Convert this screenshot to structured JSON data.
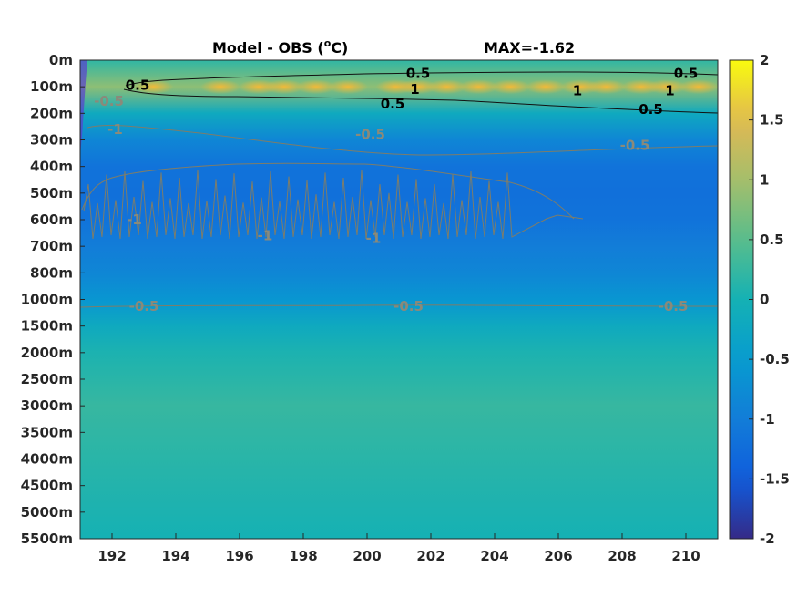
{
  "chart_data": {
    "type": "heatmap",
    "title": "Model - OBS (°C)",
    "title_base": "Model - OBS (",
    "title_sup": "o",
    "title_unit": "C)",
    "max_label": "MAX=-1.62",
    "x": {
      "range": [
        191,
        211
      ],
      "ticks": [
        192,
        194,
        196,
        198,
        200,
        202,
        204,
        206,
        208,
        210
      ]
    },
    "y": {
      "reversed": true,
      "ticks": [
        "0m",
        "100m",
        "200m",
        "300m",
        "400m",
        "500m",
        "600m",
        "700m",
        "800m",
        "1000m",
        "1500m",
        "2000m",
        "2500m",
        "3000m",
        "3500m",
        "4000m",
        "4500m",
        "5000m",
        "5500m"
      ]
    },
    "colorbar": {
      "range": [
        -2,
        2
      ],
      "ticks": [
        "2",
        "1.5",
        "1",
        "0.5",
        "0",
        "-0.5",
        "-1",
        "-1.5",
        "-2"
      ],
      "colormap": "parula"
    },
    "depth_profile": [
      {
        "depth": "0m",
        "value": 0.2
      },
      {
        "depth": "100m",
        "value": 0.85
      },
      {
        "depth": "200m",
        "value": -0.2
      },
      {
        "depth": "300m",
        "value": -0.85
      },
      {
        "depth": "400m",
        "value": -1.15
      },
      {
        "depth": "500m",
        "value": -1.2
      },
      {
        "depth": "600m",
        "value": -1.15
      },
      {
        "depth": "700m",
        "value": -1.0
      },
      {
        "depth": "800m",
        "value": -0.85
      },
      {
        "depth": "1000m",
        "value": -0.6
      },
      {
        "depth": "1500m",
        "value": -0.2
      },
      {
        "depth": "2000m",
        "value": 0.05
      },
      {
        "depth": "2500m",
        "value": 0.15
      },
      {
        "depth": "3000m",
        "value": 0.25
      },
      {
        "depth": "3500m",
        "value": 0.2
      },
      {
        "depth": "4000m",
        "value": 0.15
      },
      {
        "depth": "4500m",
        "value": 0.1
      },
      {
        "depth": "5000m",
        "value": 0.05
      },
      {
        "depth": "5500m",
        "value": 0.0
      }
    ],
    "contour_labels": [
      {
        "text": "0.5",
        "x": 192.8,
        "depth_index": 0.95,
        "style": "dark"
      },
      {
        "text": "0.5",
        "x": 201.6,
        "depth_index": 0.5,
        "style": "dark"
      },
      {
        "text": "0.5",
        "x": 210.0,
        "depth_index": 0.5,
        "style": "dark"
      },
      {
        "text": "1",
        "x": 201.5,
        "depth_index": 1.1,
        "style": "dark"
      },
      {
        "text": "1",
        "x": 206.6,
        "depth_index": 1.15,
        "style": "dark"
      },
      {
        "text": "1",
        "x": 209.5,
        "depth_index": 1.15,
        "style": "dark"
      },
      {
        "text": "0.5",
        "x": 200.8,
        "depth_index": 1.65,
        "style": "dark"
      },
      {
        "text": "0.5",
        "x": 208.9,
        "depth_index": 1.85,
        "style": "dark"
      },
      {
        "text": "-0.5",
        "x": 191.9,
        "depth_index": 1.55,
        "style": "grey"
      },
      {
        "text": "-1",
        "x": 192.1,
        "depth_index": 2.6,
        "style": "grey"
      },
      {
        "text": "-0.5",
        "x": 200.1,
        "depth_index": 2.8,
        "style": "grey"
      },
      {
        "text": "-0.5",
        "x": 208.4,
        "depth_index": 3.2,
        "style": "grey"
      },
      {
        "text": "-1",
        "x": 192.7,
        "depth_index": 6.0,
        "style": "grey"
      },
      {
        "text": "-1",
        "x": 196.8,
        "depth_index": 6.6,
        "style": "grey"
      },
      {
        "text": "-1",
        "x": 200.2,
        "depth_index": 6.7,
        "style": "grey"
      },
      {
        "text": "-0.5",
        "x": 193.0,
        "depth_index": 9.25,
        "style": "grey"
      },
      {
        "text": "-0.5",
        "x": 201.3,
        "depth_index": 9.25,
        "style": "grey"
      },
      {
        "text": "-0.5",
        "x": 209.6,
        "depth_index": 9.25,
        "style": "grey"
      }
    ]
  }
}
